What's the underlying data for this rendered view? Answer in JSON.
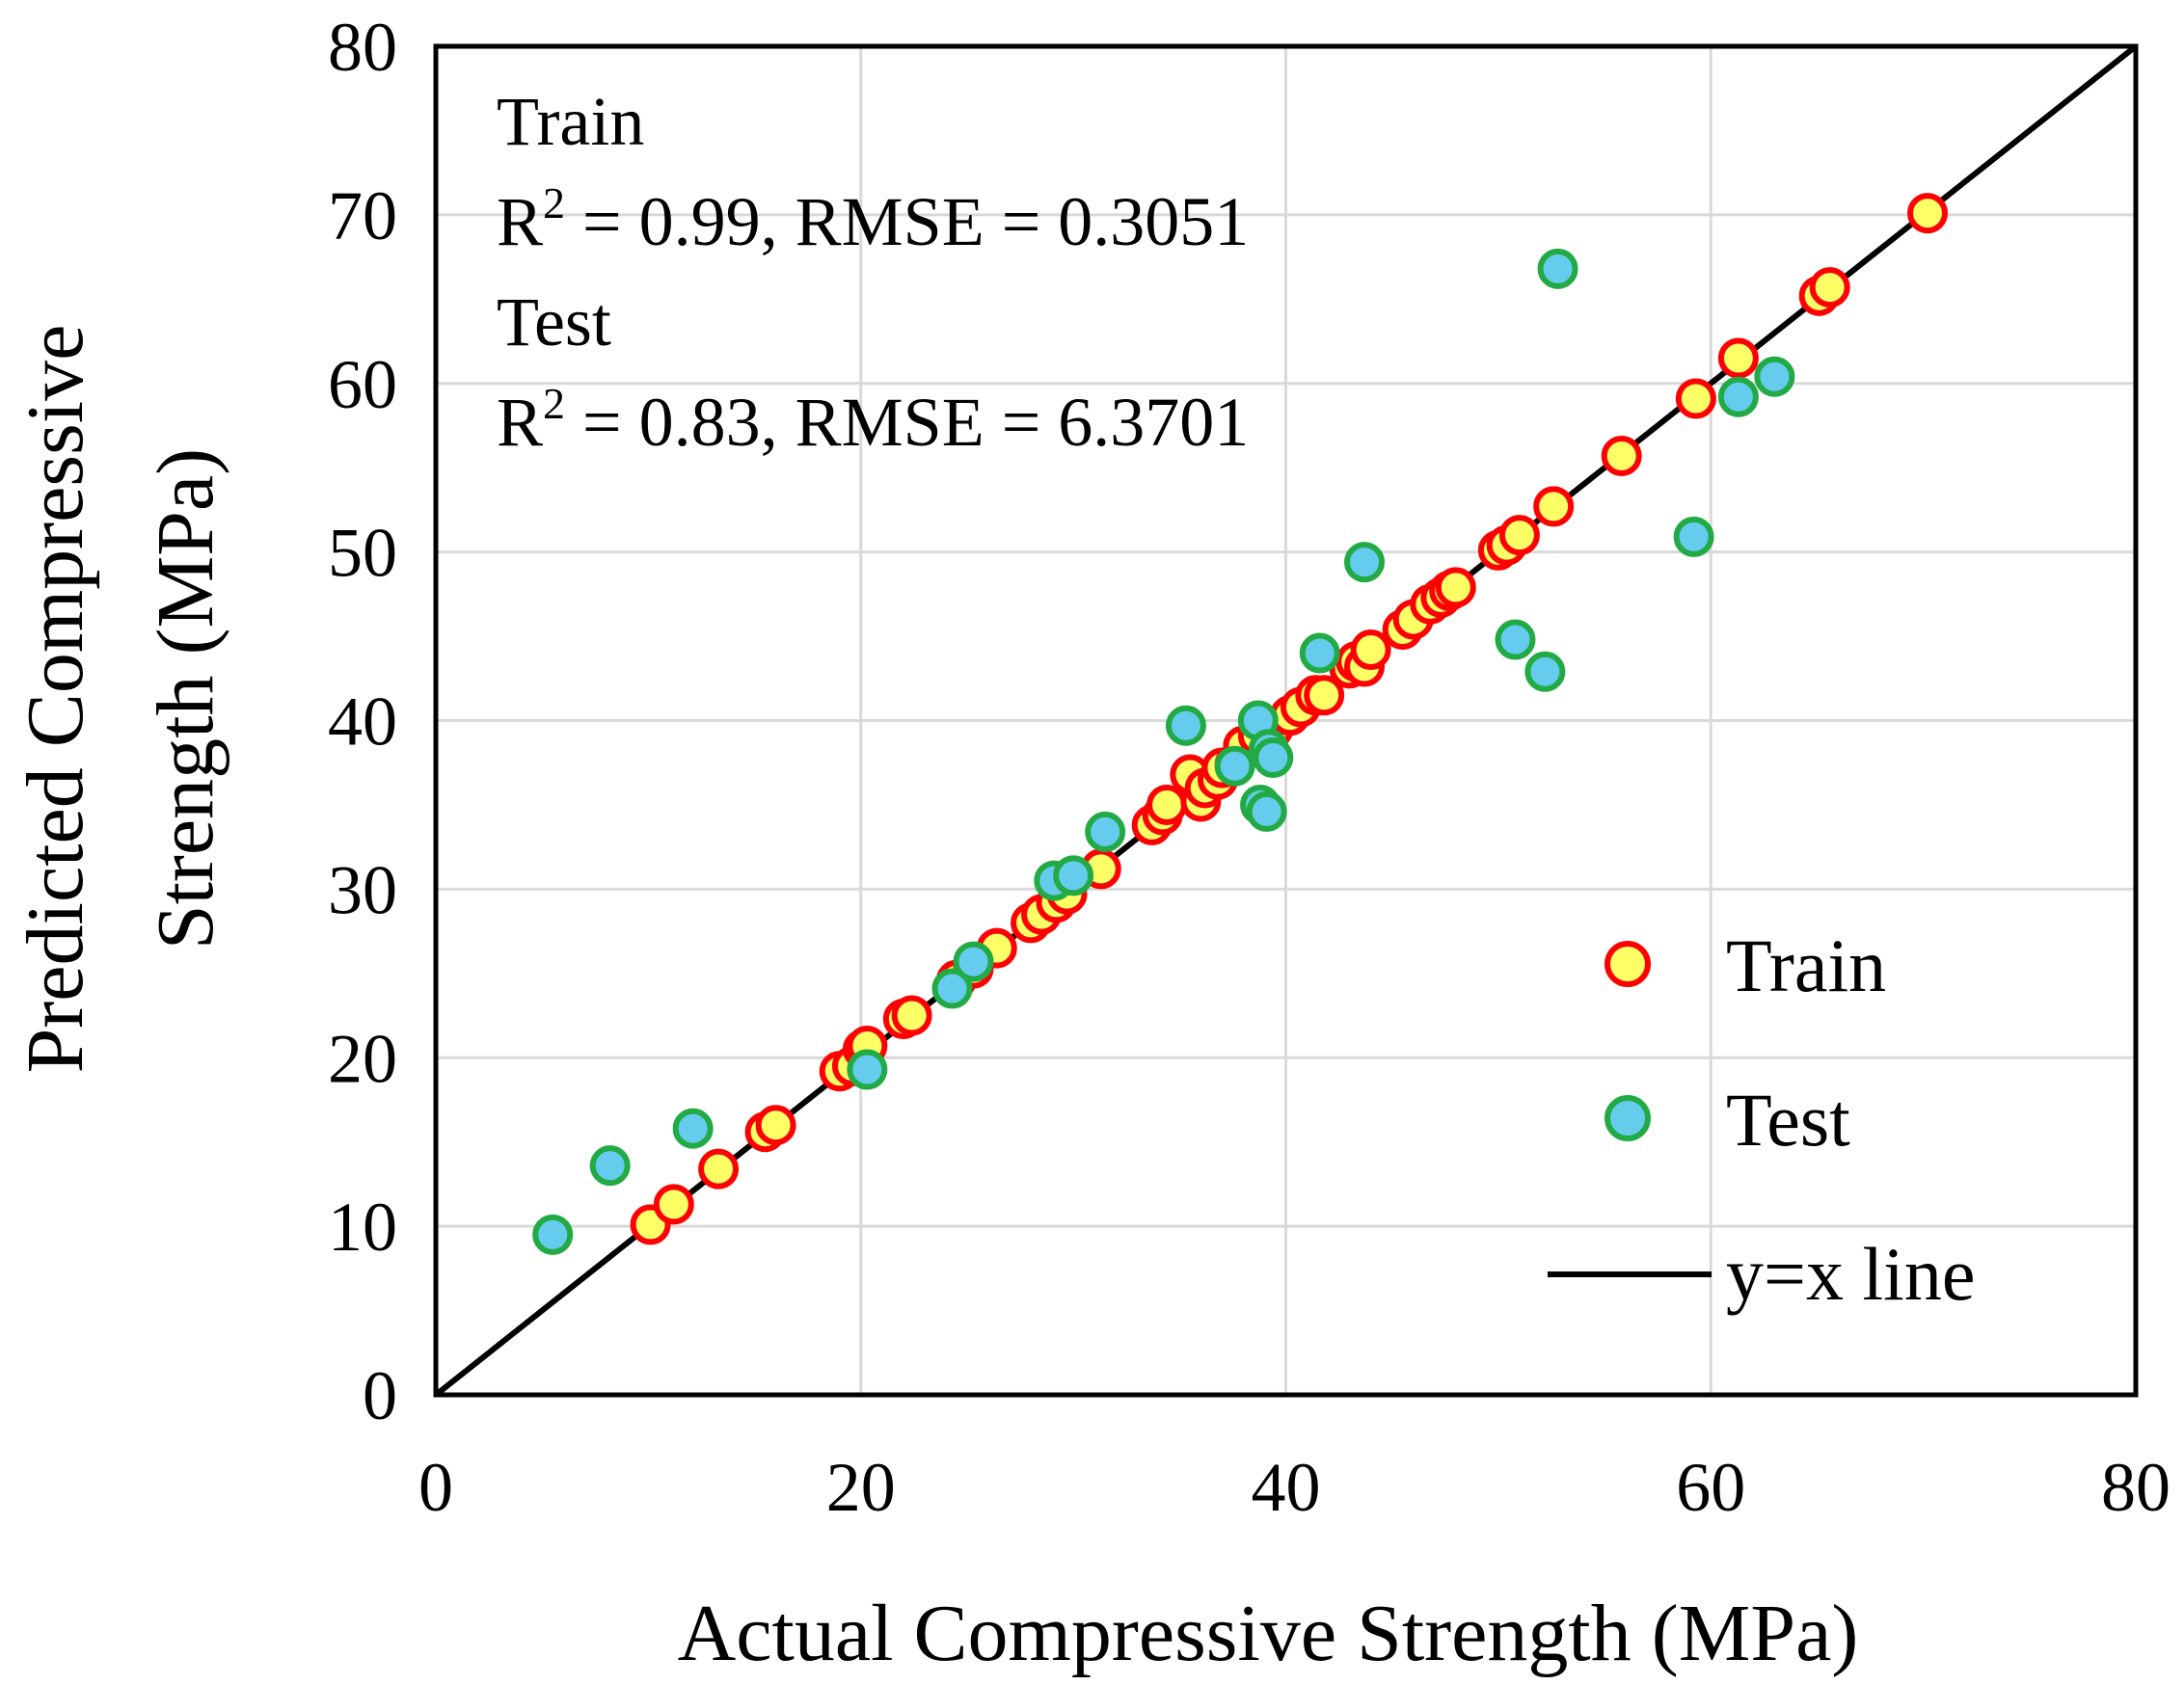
{
  "chart_data": {
    "type": "scatter",
    "xlabel": "Actual Compressive Strength (MPa)",
    "ylabel_line1": "Predicted Compressive",
    "ylabel_line2": "Strength (MPa)",
    "xlim": [
      0,
      80
    ],
    "ylim": [
      0,
      80
    ],
    "xticks": [
      0,
      20,
      40,
      60,
      80
    ],
    "yticks": [
      0,
      10,
      20,
      30,
      40,
      50,
      60,
      70,
      80
    ],
    "grid": true,
    "legend_position": "bottom-right",
    "annotations": {
      "train_header": "Train",
      "train_r_prefix": "R",
      "train_r_sup": "2",
      "train_stats": " = 0.99, RMSE = 0.3051",
      "test_header": "Test",
      "test_r_prefix": "R",
      "test_r_sup": "2",
      "test_stats": " = 0.83, RMSE = 6.3701"
    },
    "reference_line": {
      "name": "y=x line",
      "color": "#000000"
    },
    "series": [
      {
        "name": "Train",
        "fill": "#FFFF66",
        "edge": "#FF0000",
        "points": [
          [
            10.1,
            10.1
          ],
          [
            11.2,
            11.3
          ],
          [
            13.3,
            13.4
          ],
          [
            15.5,
            15.6
          ],
          [
            16.0,
            16.0
          ],
          [
            19.0,
            19.2
          ],
          [
            19.6,
            19.5
          ],
          [
            20.1,
            20.5
          ],
          [
            20.3,
            20.7
          ],
          [
            22.0,
            22.3
          ],
          [
            22.4,
            22.5
          ],
          [
            24.5,
            24.6
          ],
          [
            25.3,
            25.3
          ],
          [
            26.4,
            26.5
          ],
          [
            28.0,
            28.0
          ],
          [
            28.5,
            28.5
          ],
          [
            29.2,
            29.2
          ],
          [
            29.7,
            29.7
          ],
          [
            31.3,
            31.2
          ],
          [
            33.7,
            33.8
          ],
          [
            34.2,
            34.4
          ],
          [
            34.4,
            35.0
          ],
          [
            35.5,
            36.8
          ],
          [
            36.0,
            35.2
          ],
          [
            36.2,
            36.0
          ],
          [
            36.8,
            36.5
          ],
          [
            37.0,
            37.2
          ],
          [
            37.6,
            37.4
          ],
          [
            38.0,
            38.5
          ],
          [
            38.7,
            39.1
          ],
          [
            39.4,
            39.5
          ],
          [
            40.2,
            40.3
          ],
          [
            40.7,
            40.8
          ],
          [
            41.4,
            41.5
          ],
          [
            41.8,
            41.5
          ],
          [
            43.0,
            43.1
          ],
          [
            43.3,
            43.5
          ],
          [
            43.7,
            43.2
          ],
          [
            44.0,
            44.2
          ],
          [
            45.5,
            45.4
          ],
          [
            46.0,
            46.0
          ],
          [
            46.8,
            46.9
          ],
          [
            47.3,
            47.3
          ],
          [
            47.7,
            47.7
          ],
          [
            48.0,
            47.9
          ],
          [
            50.0,
            50.1
          ],
          [
            50.4,
            50.4
          ],
          [
            51.0,
            51.0
          ],
          [
            52.6,
            52.7
          ],
          [
            55.8,
            55.7
          ],
          [
            59.3,
            59.1
          ],
          [
            61.3,
            61.5
          ],
          [
            65.1,
            65.2
          ],
          [
            65.6,
            65.7
          ],
          [
            70.2,
            70.1
          ]
        ]
      },
      {
        "name": "Test",
        "fill": "#66CCEE",
        "edge": "#22AA44",
        "points": [
          [
            5.5,
            9.5
          ],
          [
            8.2,
            13.6
          ],
          [
            12.1,
            15.8
          ],
          [
            20.3,
            19.3
          ],
          [
            24.3,
            24.1
          ],
          [
            25.3,
            25.7
          ],
          [
            29.1,
            30.5
          ],
          [
            30.0,
            30.8
          ],
          [
            31.5,
            33.4
          ],
          [
            35.3,
            39.7
          ],
          [
            37.6,
            37.3
          ],
          [
            38.7,
            40.0
          ],
          [
            38.8,
            35.0
          ],
          [
            39.1,
            34.6
          ],
          [
            39.2,
            38.3
          ],
          [
            39.4,
            37.8
          ],
          [
            41.6,
            44.0
          ],
          [
            43.7,
            49.4
          ],
          [
            50.8,
            44.8
          ],
          [
            52.2,
            42.9
          ],
          [
            52.8,
            66.8
          ],
          [
            59.2,
            50.9
          ],
          [
            61.3,
            59.2
          ],
          [
            63.0,
            60.4
          ]
        ]
      }
    ]
  }
}
